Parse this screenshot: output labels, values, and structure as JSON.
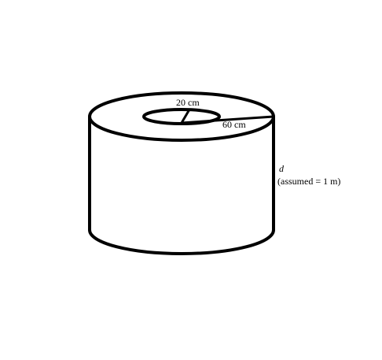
{
  "diagram": {
    "inner_radius_label": "20 cm",
    "outer_radius_label": "60 cm",
    "depth_symbol": "d",
    "depth_note": "(assumed = 1 m)"
  }
}
